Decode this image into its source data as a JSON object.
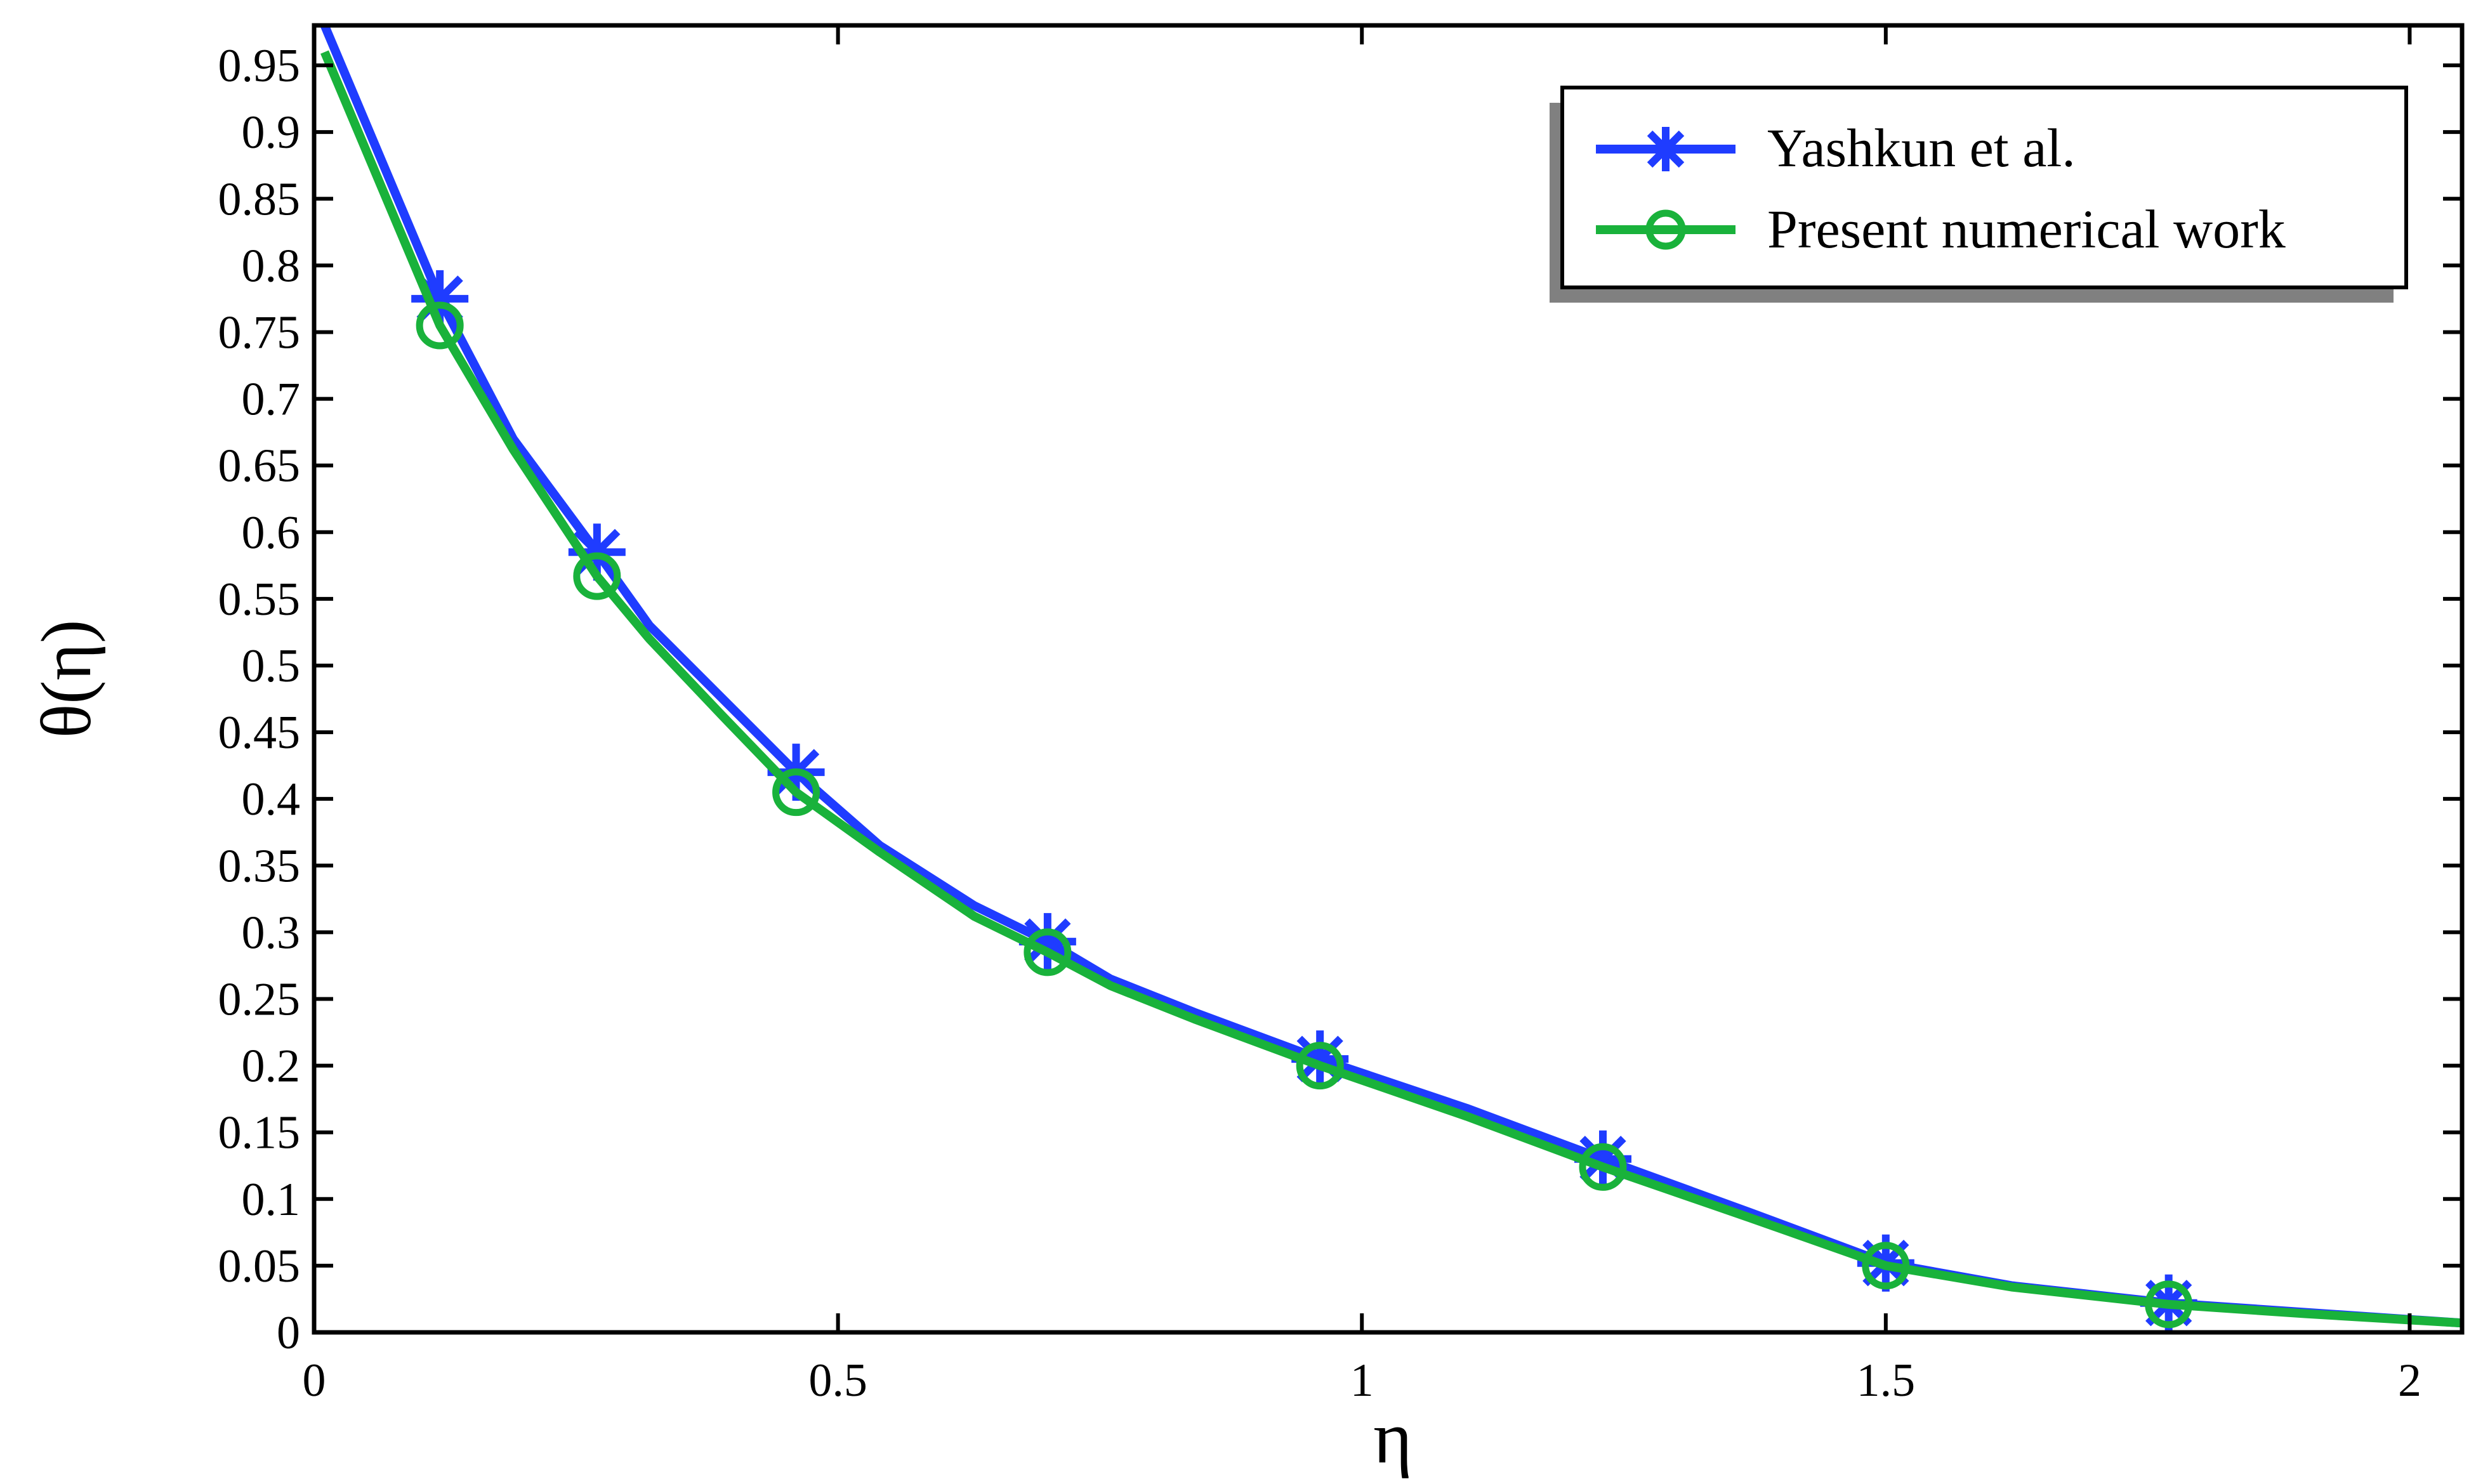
{
  "chart_data": {
    "type": "line",
    "xlabel": "η",
    "ylabel": "θ(η)",
    "xlim": [
      0,
      2.05
    ],
    "ylim": [
      0,
      0.98
    ],
    "xticks": [
      0,
      0.5,
      1,
      1.5,
      2
    ],
    "xtick_labels": [
      "0",
      "0.5",
      "1",
      "1.5",
      "2"
    ],
    "yticks": [
      0,
      0.05,
      0.1,
      0.15,
      0.2,
      0.25,
      0.3,
      0.35,
      0.4,
      0.45,
      0.5,
      0.55,
      0.6,
      0.65,
      0.7,
      0.75,
      0.8,
      0.85,
      0.9,
      0.95
    ],
    "ytick_labels": [
      "0",
      "0.05",
      "0.1",
      "0.15",
      "0.2",
      "0.25",
      "0.3",
      "0.35",
      "0.4",
      "0.45",
      "0.5",
      "0.55",
      "0.6",
      "0.65",
      "0.7",
      "0.75",
      "0.8",
      "0.85",
      "0.9",
      "0.95"
    ],
    "grid": false,
    "legend_position": "top-right",
    "series": [
      {
        "name": "Yashkun et al.",
        "color": "#1f3cff",
        "marker": "asterisk",
        "line": {
          "x": [
            0.01,
            0.12,
            0.19,
            0.27,
            0.32,
            0.39,
            0.46,
            0.54,
            0.63,
            0.7,
            0.76,
            0.84,
            0.96,
            1.1,
            1.23,
            1.37,
            1.5,
            1.62,
            1.77,
            1.9,
            2.05
          ],
          "y": [
            0.98,
            0.775,
            0.67,
            0.585,
            0.53,
            0.475,
            0.42,
            0.365,
            0.32,
            0.293,
            0.265,
            0.24,
            0.205,
            0.168,
            0.13,
            0.09,
            0.052,
            0.035,
            0.022,
            0.015,
            0.007
          ]
        },
        "markers": {
          "x": [
            0.12,
            0.27,
            0.46,
            0.7,
            0.96,
            1.23,
            1.5,
            1.77
          ],
          "y": [
            0.775,
            0.585,
            0.42,
            0.293,
            0.205,
            0.13,
            0.052,
            0.022
          ]
        }
      },
      {
        "name": "Present numerical work",
        "color": "#19b23b",
        "marker": "circle",
        "line": {
          "x": [
            0.01,
            0.12,
            0.19,
            0.27,
            0.32,
            0.39,
            0.46,
            0.54,
            0.63,
            0.7,
            0.76,
            0.84,
            0.96,
            1.1,
            1.23,
            1.37,
            1.5,
            1.62,
            1.77,
            1.9,
            2.05
          ],
          "y": [
            0.96,
            0.755,
            0.662,
            0.567,
            0.52,
            0.462,
            0.405,
            0.36,
            0.312,
            0.285,
            0.26,
            0.235,
            0.2,
            0.162,
            0.124,
            0.086,
            0.05,
            0.034,
            0.021,
            0.014,
            0.007
          ]
        },
        "markers": {
          "x": [
            0.12,
            0.27,
            0.46,
            0.7,
            0.96,
            1.23,
            1.5,
            1.77
          ],
          "y": [
            0.755,
            0.567,
            0.405,
            0.285,
            0.2,
            0.124,
            0.05,
            0.021
          ]
        }
      }
    ]
  }
}
